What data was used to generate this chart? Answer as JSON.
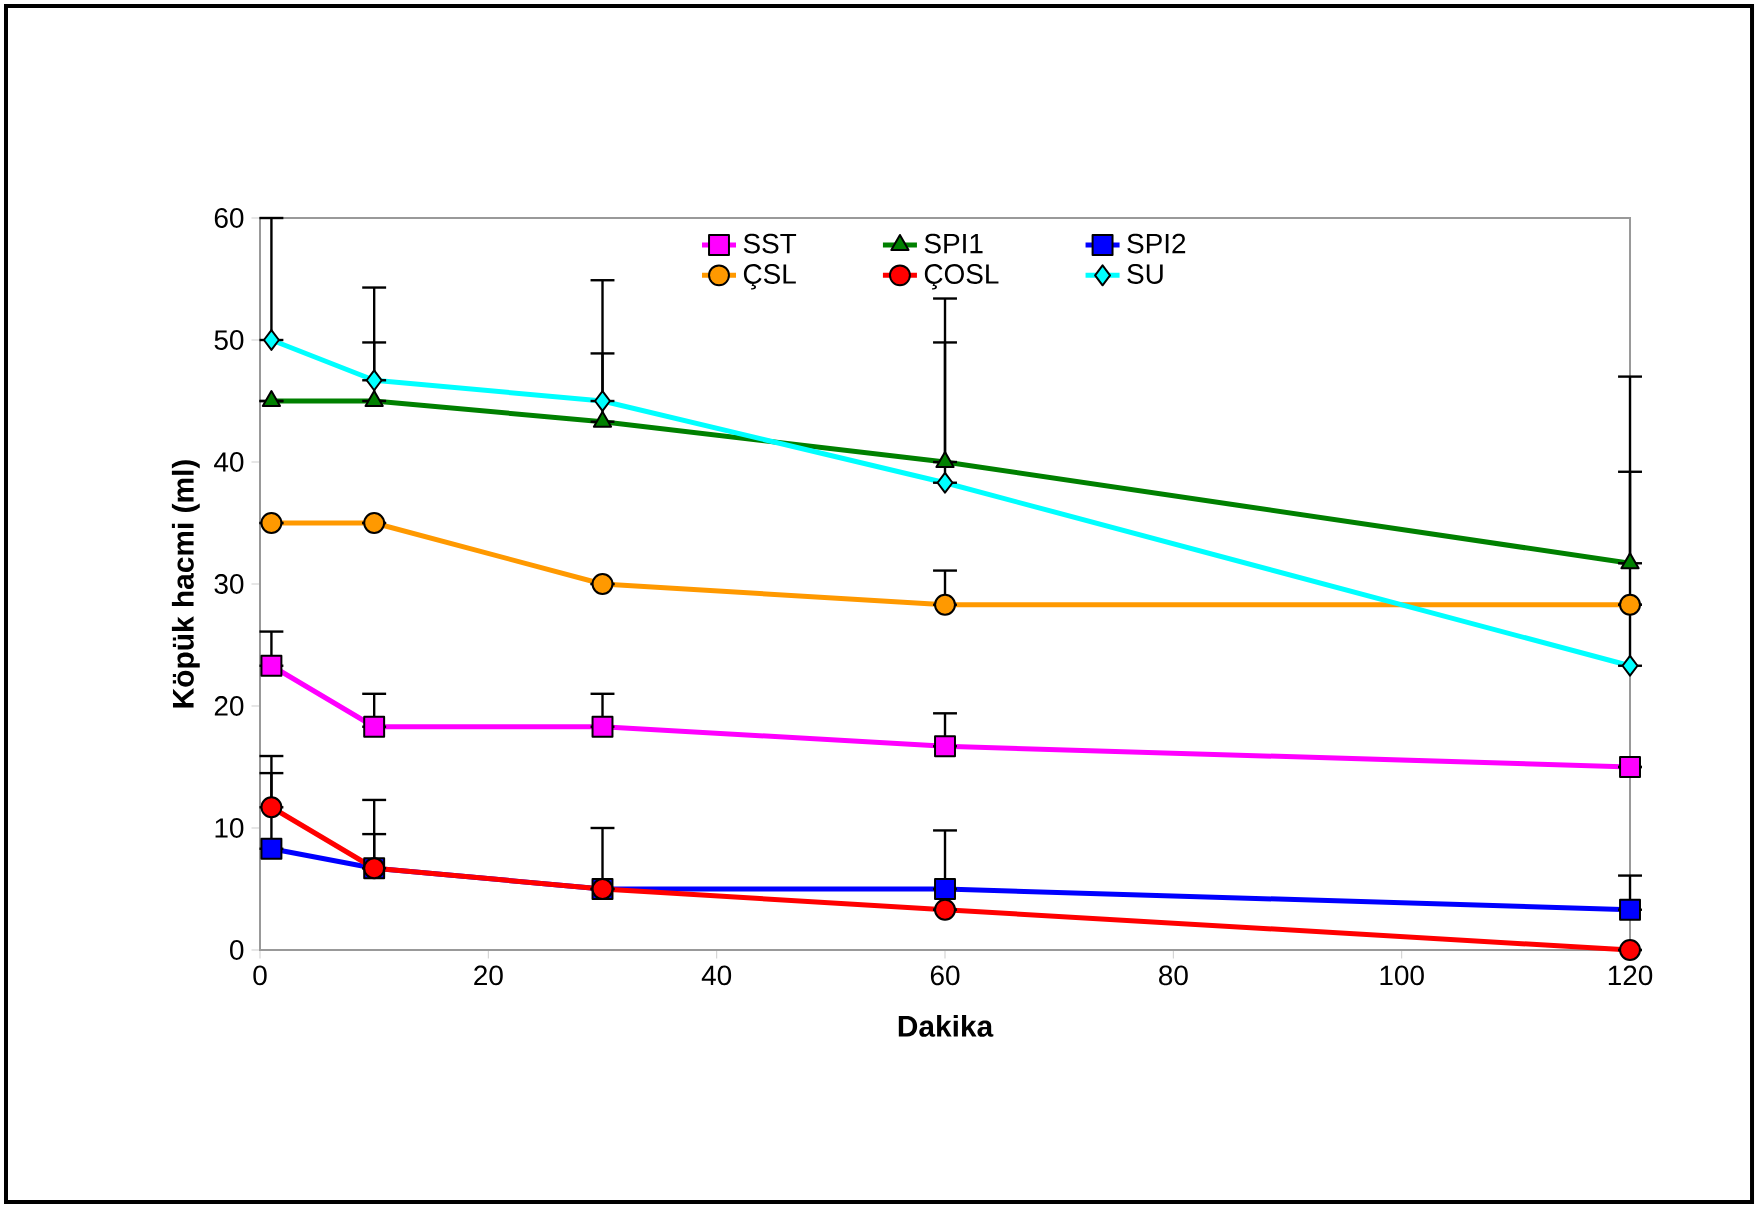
{
  "chart_data": {
    "type": "line",
    "xlabel": "Dakika",
    "ylabel": "Köpük hacmi (ml)",
    "x": [
      1,
      10,
      30,
      60,
      120
    ],
    "xlim": [
      0,
      120
    ],
    "xticks": [
      0,
      20,
      40,
      60,
      80,
      100,
      120
    ],
    "ylim": [
      0,
      60
    ],
    "yticks": [
      0,
      10,
      20,
      30,
      40,
      50,
      60
    ],
    "grid": false,
    "legend": "top",
    "line_style": "solid",
    "series": [
      {
        "name": "SST",
        "color": "#ff00ff",
        "marker": "square",
        "values": [
          23.3,
          18.3,
          18.3,
          16.7,
          15
        ],
        "errors": [
          [
            23.3,
            26.1
          ],
          [
            18.3,
            21.0
          ],
          [
            18.3,
            21.0
          ],
          [
            16.7,
            19.4
          ],
          null
        ]
      },
      {
        "name": "SPI1",
        "color": "#008000",
        "marker": "triangle",
        "values": [
          45,
          45,
          43.3,
          40,
          31.7
        ],
        "errors": [
          null,
          [
            45,
            49.8
          ],
          [
            43.3,
            48.9
          ],
          [
            40,
            49.8
          ],
          [
            31.7,
            39.2
          ]
        ]
      },
      {
        "name": "SPI2",
        "color": "#0000ff",
        "marker": "square",
        "values": [
          8.3,
          6.7,
          5,
          5,
          3.3
        ],
        "errors": [
          [
            8.3,
            14.5
          ],
          [
            6.7,
            9.5
          ],
          [
            5,
            10.0
          ],
          [
            5,
            9.8
          ],
          [
            3.3,
            6.1
          ]
        ]
      },
      {
        "name": "ÇSL",
        "color": "#ff9900",
        "marker": "circle",
        "values": [
          35,
          35,
          30,
          28.3,
          28.3
        ],
        "errors": [
          null,
          null,
          null,
          [
            28.3,
            31.1
          ],
          null
        ]
      },
      {
        "name": "ÇOSL",
        "color": "#ff0000",
        "marker": "circle",
        "values": [
          11.7,
          6.7,
          5,
          3.3,
          0
        ],
        "errors": [
          [
            11.7,
            15.9
          ],
          [
            6.7,
            12.3
          ],
          null,
          null,
          null
        ]
      },
      {
        "name": "SU",
        "color": "#00ffff",
        "marker": "diamond",
        "values": [
          50,
          46.7,
          45,
          38.3,
          23.3
        ],
        "errors": [
          [
            50,
            60
          ],
          [
            46.7,
            54.3
          ],
          [
            45,
            54.9
          ],
          [
            38.3,
            53.4
          ],
          [
            23.3,
            47
          ]
        ]
      }
    ]
  }
}
